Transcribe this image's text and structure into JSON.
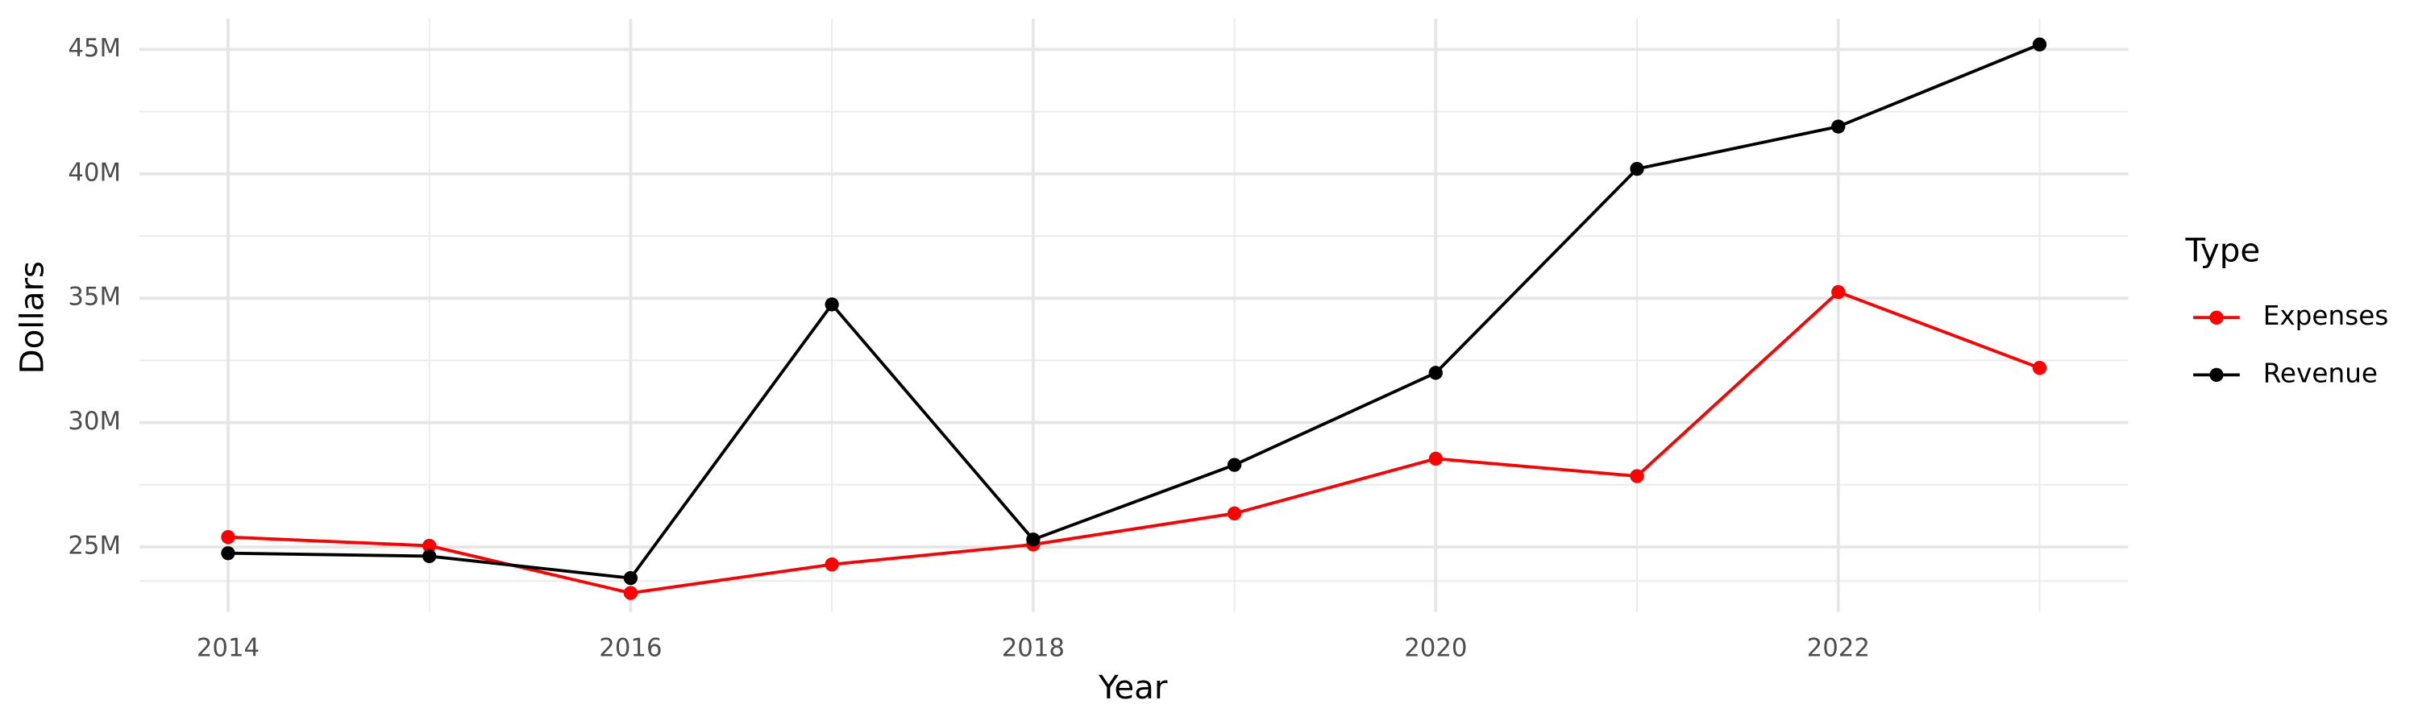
{
  "chart_data": {
    "type": "line",
    "x_label": "Year",
    "y_label": "Dollars",
    "legend_title": "Type",
    "legend_position": "right",
    "grid": true,
    "x": [
      2014,
      2015,
      2016,
      2017,
      2018,
      2019,
      2020,
      2021,
      2022,
      2023
    ],
    "series": [
      {
        "name": "Expenses",
        "color": "#ff0000",
        "values": [
          25400000,
          25050000,
          23150000,
          24300000,
          25100000,
          26350000,
          28550000,
          27850000,
          35250000,
          32200000
        ]
      },
      {
        "name": "Revenue",
        "color": "#000000",
        "values": [
          24750000,
          24630000,
          23750000,
          34750000,
          25300000,
          28300000,
          32000000,
          40200000,
          41900000,
          45200000
        ]
      }
    ],
    "xlim": [
      2013.56,
      2023.44
    ],
    "xticks": [
      2014,
      2016,
      2018,
      2020,
      2022
    ],
    "ylim": [
      22390000,
      46240000
    ],
    "yticks": [
      {
        "value": 25000000,
        "label": "25M"
      },
      {
        "value": 30000000,
        "label": "30M"
      },
      {
        "value": 35000000,
        "label": "35M"
      },
      {
        "value": 40000000,
        "label": "40M"
      },
      {
        "value": 45000000,
        "label": "45M"
      }
    ]
  }
}
